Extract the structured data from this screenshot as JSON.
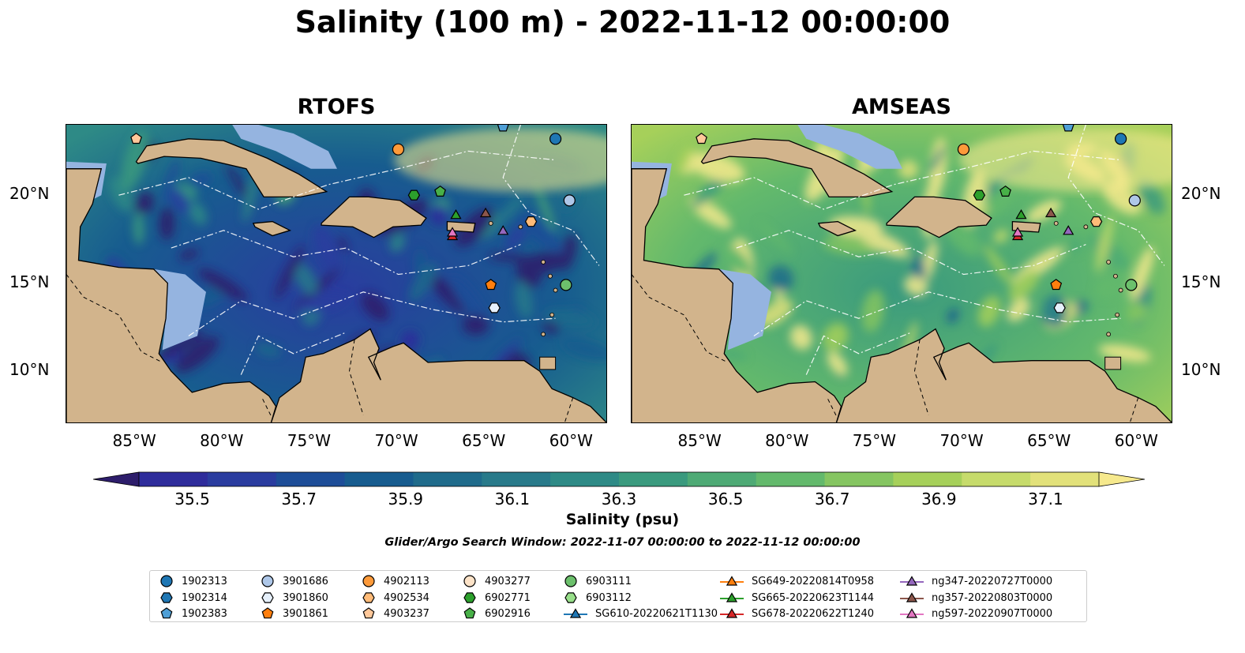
{
  "title": "Salinity (100 m) - 2022-11-12 00:00:00",
  "panels": [
    {
      "title": "RTOFS",
      "palette_shift": -0.55
    },
    {
      "title": "AMSEAS",
      "palette_shift": 0.15
    }
  ],
  "map_extent": {
    "lon": [
      -89,
      -58
    ],
    "lat": [
      7,
      24
    ]
  },
  "lon_ticks": [
    "85°W",
    "80°W",
    "75°W",
    "70°W",
    "65°W",
    "60°W"
  ],
  "lon_tick_values": [
    -85,
    -80,
    -75,
    -70,
    -65,
    -60
  ],
  "lat_ticks": [
    "20°N",
    "15°N",
    "10°N"
  ],
  "lat_tick_values": [
    20,
    15,
    10
  ],
  "colorbar": {
    "label": "Salinity (psu)",
    "min": 35.4,
    "max": 37.2,
    "ticks": [
      "35.5",
      "35.7",
      "35.9",
      "36.1",
      "36.3",
      "36.5",
      "36.7",
      "36.9",
      "37.1"
    ],
    "tick_values": [
      35.5,
      35.7,
      35.9,
      36.1,
      36.3,
      36.5,
      36.7,
      36.9,
      37.1
    ],
    "colors": [
      "#2d1d6b",
      "#2e2c9b",
      "#2a3c9f",
      "#1d4d98",
      "#175c8f",
      "#1f6b8b",
      "#287a8a",
      "#2e8a86",
      "#3a9a7e",
      "#4eaa75",
      "#63b96c",
      "#85c561",
      "#a6d05a",
      "#c6db6b",
      "#e2e17a",
      "#f6e98d"
    ]
  },
  "search_window": "Glider/Argo Search Window: 2022-11-07 00:00:00 to 2022-11-12 00:00:00",
  "colors": {
    "land": "#d2b48c",
    "shelf": "#95b4e0",
    "border": "#000000"
  },
  "legend": [
    {
      "label": "1902313",
      "marker": "circle",
      "color": "#1f77b4"
    },
    {
      "label": "1902314",
      "marker": "hexagon",
      "color": "#1f77b4"
    },
    {
      "label": "1902383",
      "marker": "pentagon",
      "color": "#4f9fd6"
    },
    {
      "label": "3901686",
      "marker": "circle",
      "color": "#aec7e8"
    },
    {
      "label": "3901860",
      "marker": "hexagon",
      "color": "#e6f0fb"
    },
    {
      "label": "3901861",
      "marker": "pentagon",
      "color": "#ff7f0e"
    },
    {
      "label": "4902113",
      "marker": "circle",
      "color": "#fd9a3a"
    },
    {
      "label": "4902534",
      "marker": "hexagon",
      "color": "#ffbb78"
    },
    {
      "label": "4903237",
      "marker": "pentagon",
      "color": "#ffc89a"
    },
    {
      "label": "4903277",
      "marker": "circle",
      "color": "#fde3c8"
    },
    {
      "label": "6902771",
      "marker": "hexagon",
      "color": "#2ca02c"
    },
    {
      "label": "6902916",
      "marker": "pentagon",
      "color": "#48b048"
    },
    {
      "label": "6903111",
      "marker": "circle",
      "color": "#6cc06c"
    },
    {
      "label": "6903112",
      "marker": "hexagon",
      "color": "#98df8a"
    },
    {
      "label": "SG610-20220621T1130",
      "marker": "triangle",
      "color": "#1f77b4"
    },
    {
      "label": "SG649-20220814T0958",
      "marker": "triangle",
      "color": "#ff7f0e"
    },
    {
      "label": "SG665-20220623T1144",
      "marker": "triangle",
      "color": "#2ca02c"
    },
    {
      "label": "SG678-20220622T1240",
      "marker": "triangle",
      "color": "#d62728"
    },
    {
      "label": "ng347-20220727T0000",
      "marker": "triangle",
      "color": "#9467bd"
    },
    {
      "label": "ng357-20220803T0000",
      "marker": "triangle",
      "color": "#8c564b"
    },
    {
      "label": "ng597-20220907T0000",
      "marker": "triangle",
      "color": "#e377c2"
    }
  ],
  "observations": [
    {
      "id": "4903237",
      "lon": -85,
      "lat": 23.2
    },
    {
      "id": "1902313",
      "lon": -61,
      "lat": 23.2
    },
    {
      "id": "4902113",
      "lon": -70,
      "lat": 22.6
    },
    {
      "id": "1902383",
      "lon": -64,
      "lat": 23.9
    },
    {
      "id": "6902771",
      "lon": -69.1,
      "lat": 20.0
    },
    {
      "id": "6902916",
      "lon": -67.6,
      "lat": 20.2
    },
    {
      "id": "3901686",
      "lon": -60.2,
      "lat": 19.7
    },
    {
      "id": "4902534",
      "lon": -62.4,
      "lat": 18.5
    },
    {
      "id": "SG665-20220623T1144",
      "lon": -66.7,
      "lat": 18.9
    },
    {
      "id": "ng357-20220803T0000",
      "lon": -65.0,
      "lat": 19.0
    },
    {
      "id": "ng347-20220727T0000",
      "lon": -64.0,
      "lat": 18.0
    },
    {
      "id": "SG678-20220622T1240",
      "lon": -66.9,
      "lat": 17.7
    },
    {
      "id": "ng597-20220907T0000",
      "lon": -66.9,
      "lat": 17.9
    },
    {
      "id": "3901861",
      "lon": -64.7,
      "lat": 14.9
    },
    {
      "id": "6903111",
      "lon": -60.4,
      "lat": 14.9
    },
    {
      "id": "3901860",
      "lon": -64.5,
      "lat": 13.6
    }
  ]
}
